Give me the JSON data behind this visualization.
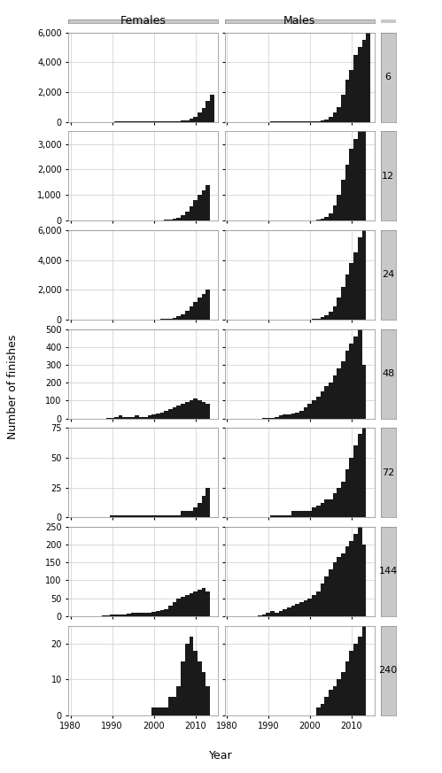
{
  "rows": [
    6,
    12,
    24,
    48,
    72,
    144,
    240
  ],
  "cols": [
    "Females",
    "Males"
  ],
  "years": [
    1980,
    1981,
    1982,
    1983,
    1984,
    1985,
    1986,
    1987,
    1988,
    1989,
    1990,
    1991,
    1992,
    1993,
    1994,
    1995,
    1996,
    1997,
    1998,
    1999,
    2000,
    2001,
    2002,
    2003,
    2004,
    2005,
    2006,
    2007,
    2008,
    2009,
    2010,
    2011,
    2012,
    2013,
    2014
  ],
  "data": {
    "6": {
      "Females": [
        0,
        0,
        0,
        0,
        0,
        0,
        0,
        0,
        0,
        0,
        0,
        2,
        2,
        2,
        2,
        2,
        2,
        2,
        2,
        2,
        2,
        5,
        10,
        15,
        20,
        30,
        50,
        80,
        120,
        200,
        350,
        600,
        900,
        1400,
        1800
      ],
      "Males": [
        0,
        0,
        0,
        0,
        0,
        0,
        0,
        0,
        0,
        0,
        0,
        2,
        2,
        2,
        2,
        2,
        2,
        2,
        2,
        5,
        10,
        20,
        40,
        80,
        150,
        300,
        600,
        1000,
        1800,
        2800,
        3500,
        4500,
        5000,
        5500,
        6000
      ]
    },
    "12": {
      "Females": [
        0,
        0,
        0,
        0,
        0,
        0,
        0,
        0,
        0,
        0,
        0,
        2,
        2,
        2,
        2,
        2,
        2,
        2,
        2,
        2,
        5,
        10,
        15,
        25,
        40,
        70,
        120,
        200,
        350,
        550,
        800,
        1000,
        1200,
        1400,
        0
      ],
      "Males": [
        0,
        0,
        0,
        0,
        0,
        0,
        0,
        0,
        0,
        0,
        0,
        2,
        2,
        2,
        2,
        2,
        2,
        2,
        2,
        5,
        10,
        20,
        40,
        80,
        150,
        300,
        600,
        1000,
        1600,
        2200,
        2800,
        3200,
        3500,
        3500,
        0
      ]
    },
    "24": {
      "Females": [
        0,
        0,
        0,
        0,
        0,
        0,
        0,
        0,
        0,
        0,
        2,
        2,
        2,
        2,
        2,
        2,
        2,
        2,
        2,
        5,
        10,
        15,
        25,
        50,
        80,
        120,
        200,
        350,
        600,
        900,
        1200,
        1500,
        1700,
        2000,
        0
      ],
      "Males": [
        0,
        0,
        0,
        0,
        0,
        0,
        0,
        0,
        0,
        0,
        2,
        2,
        2,
        2,
        2,
        2,
        2,
        2,
        5,
        10,
        20,
        40,
        80,
        150,
        300,
        500,
        900,
        1500,
        2200,
        3000,
        3800,
        4500,
        5500,
        6000,
        0
      ]
    },
    "48": {
      "Females": [
        0,
        0,
        0,
        0,
        0,
        0,
        0,
        0,
        0,
        2,
        5,
        10,
        15,
        10,
        10,
        10,
        15,
        10,
        10,
        15,
        20,
        25,
        30,
        40,
        50,
        60,
        70,
        80,
        90,
        100,
        110,
        100,
        90,
        80,
        0
      ],
      "Males": [
        0,
        0,
        0,
        0,
        0,
        0,
        0,
        0,
        0,
        2,
        5,
        5,
        10,
        15,
        20,
        20,
        25,
        30,
        40,
        60,
        80,
        100,
        120,
        150,
        180,
        200,
        240,
        280,
        320,
        380,
        420,
        460,
        500,
        300,
        0
      ]
    },
    "72": {
      "Females": [
        0,
        0,
        0,
        0,
        0,
        0,
        0,
        0,
        0,
        0,
        2,
        2,
        2,
        2,
        2,
        2,
        2,
        2,
        2,
        2,
        2,
        2,
        2,
        2,
        2,
        2,
        2,
        5,
        5,
        5,
        8,
        12,
        18,
        25,
        0
      ],
      "Males": [
        0,
        0,
        0,
        0,
        0,
        0,
        0,
        0,
        0,
        0,
        0,
        2,
        2,
        2,
        2,
        2,
        5,
        5,
        5,
        5,
        5,
        8,
        10,
        12,
        15,
        15,
        20,
        25,
        30,
        40,
        50,
        60,
        70,
        80,
        0
      ]
    },
    "144": {
      "Females": [
        0,
        0,
        0,
        0,
        0,
        0,
        0,
        0,
        2,
        2,
        5,
        5,
        5,
        5,
        8,
        10,
        10,
        10,
        10,
        10,
        12,
        15,
        18,
        20,
        30,
        40,
        50,
        55,
        60,
        65,
        70,
        75,
        80,
        70,
        0
      ],
      "Males": [
        0,
        0,
        0,
        0,
        0,
        0,
        0,
        0,
        2,
        5,
        10,
        15,
        10,
        15,
        20,
        25,
        30,
        35,
        40,
        45,
        50,
        60,
        70,
        90,
        110,
        130,
        150,
        165,
        175,
        195,
        210,
        230,
        250,
        200,
        0
      ]
    },
    "240": {
      "Females": [
        0,
        0,
        0,
        0,
        0,
        0,
        0,
        0,
        0,
        0,
        0,
        0,
        0,
        0,
        0,
        0,
        0,
        0,
        0,
        0,
        2,
        2,
        2,
        2,
        5,
        5,
        8,
        15,
        20,
        22,
        18,
        15,
        12,
        8,
        0
      ],
      "Males": [
        0,
        0,
        0,
        0,
        0,
        0,
        0,
        0,
        0,
        0,
        0,
        0,
        0,
        0,
        0,
        0,
        0,
        0,
        0,
        0,
        0,
        0,
        2,
        3,
        5,
        7,
        8,
        10,
        12,
        15,
        18,
        20,
        22,
        25,
        0
      ]
    }
  },
  "ylims": {
    "6": [
      0,
      6000
    ],
    "12": [
      0,
      3500
    ],
    "24": [
      0,
      6000
    ],
    "48": [
      0,
      500
    ],
    "72": [
      0,
      75
    ],
    "144": [
      0,
      250
    ],
    "240": [
      0,
      25
    ]
  },
  "yticks": {
    "6": [
      0,
      2000,
      4000,
      6000
    ],
    "12": [
      0,
      1000,
      2000,
      3000
    ],
    "24": [
      0,
      2000,
      4000,
      6000
    ],
    "48": [
      0,
      100,
      200,
      300,
      400,
      500
    ],
    "72": [
      0,
      25,
      50,
      75
    ],
    "144": [
      0,
      50,
      100,
      150,
      200,
      250
    ],
    "240": [
      0,
      10,
      20
    ]
  },
  "bar_color": "#1a1a1a",
  "bg_color": "#ffffff",
  "grid_color": "#cccccc",
  "strip_bg_color": "#c8c8c8",
  "xlabel": "Year",
  "ylabel": "Number of finishes",
  "xlim": [
    1979.5,
    2015.5
  ],
  "xticks": [
    1980,
    1990,
    2000,
    2010
  ],
  "xtick_labels": [
    "1980",
    "1990",
    "2000",
    "2010"
  ]
}
